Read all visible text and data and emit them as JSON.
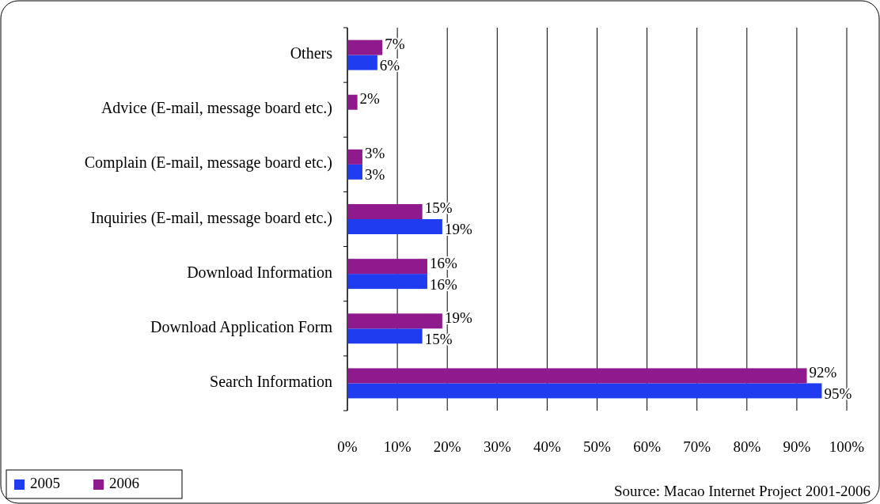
{
  "chart_data": {
    "type": "bar",
    "orientation": "horizontal",
    "categories": [
      "Others",
      "Advice (E-mail, message board etc.)",
      "Complain (E-mail, message board etc.)",
      "Inquiries (E-mail, message board etc.)",
      "Download Information",
      "Download Application Form",
      "Search Information"
    ],
    "series": [
      {
        "name": "2005",
        "color": "#1f3cf0",
        "values": [
          6,
          null,
          3,
          19,
          16,
          15,
          95
        ],
        "value_labels": [
          "6%",
          null,
          "3%",
          "19%",
          "16%",
          "15%",
          "95%"
        ]
      },
      {
        "name": "2006",
        "color": "#8e1a8e",
        "values": [
          7,
          2,
          3,
          15,
          16,
          19,
          92
        ],
        "value_labels": [
          "7%",
          "2%",
          "3%",
          "15%",
          "16%",
          "19%",
          "92%"
        ]
      }
    ],
    "xlim": [
      0,
      100
    ],
    "xticks": [
      {
        "value": 0,
        "label": "0%"
      },
      {
        "value": 10,
        "label": "10%"
      },
      {
        "value": 20,
        "label": "20%"
      },
      {
        "value": 30,
        "label": "30%"
      },
      {
        "value": 40,
        "label": "40%"
      },
      {
        "value": 50,
        "label": "50%"
      },
      {
        "value": 60,
        "label": "60%"
      },
      {
        "value": 70,
        "label": "70%"
      },
      {
        "value": 80,
        "label": "80%"
      },
      {
        "value": 90,
        "label": "90%"
      },
      {
        "value": 100,
        "label": "100%"
      }
    ],
    "grid": "x",
    "legend": "bottom left",
    "annotations": [
      "Source: Macao Internet Project 2001-2006"
    ]
  }
}
